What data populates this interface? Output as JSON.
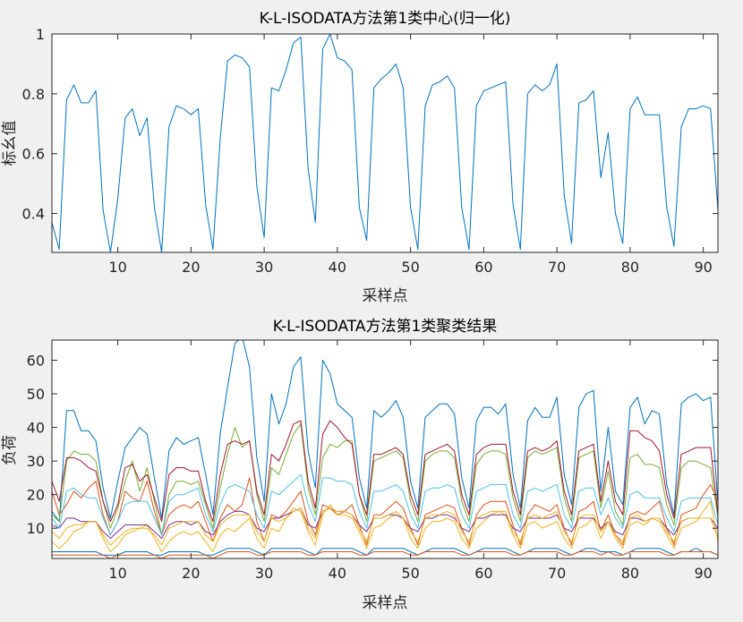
{
  "figure": {
    "background": "#f0f0f0",
    "axes_color": "#262626",
    "plot_background": "#ffffff"
  },
  "chart_data": [
    {
      "type": "line",
      "title": "K-L-ISODATA方法第1类中心(归一化)",
      "xlabel": "采样点",
      "ylabel": "标幺值",
      "xlim": [
        1,
        92
      ],
      "ylim": [
        0.27,
        1.0
      ],
      "xticks": [
        10,
        20,
        30,
        40,
        50,
        60,
        70,
        80,
        90
      ],
      "yticks": [
        0.4,
        0.6,
        0.8,
        1
      ],
      "ytick_labels": [
        "0.4",
        "0.6",
        "0.8",
        "1"
      ],
      "grid": false,
      "series": [
        {
          "color": "#0072BD",
          "x": [
            1,
            2,
            3,
            4,
            5,
            6,
            7,
            8,
            9,
            10,
            11,
            12,
            13,
            14,
            15,
            16,
            17,
            18,
            19,
            20,
            21,
            22,
            23,
            24,
            25,
            26,
            27,
            28,
            29,
            30,
            31,
            32,
            33,
            34,
            35,
            36,
            37,
            38,
            39,
            40,
            41,
            42,
            43,
            44,
            45,
            46,
            47,
            48,
            49,
            50,
            51,
            52,
            53,
            54,
            55,
            56,
            57,
            58,
            59,
            60,
            61,
            62,
            63,
            64,
            65,
            66,
            67,
            68,
            69,
            70,
            71,
            72,
            73,
            74,
            75,
            76,
            77,
            78,
            79,
            80,
            81,
            82,
            83,
            84,
            85,
            86,
            87,
            88,
            89,
            90,
            91,
            92
          ],
          "values": [
            0.37,
            0.28,
            0.78,
            0.83,
            0.77,
            0.77,
            0.81,
            0.41,
            0.27,
            0.45,
            0.72,
            0.75,
            0.66,
            0.72,
            0.42,
            0.27,
            0.69,
            0.76,
            0.75,
            0.73,
            0.75,
            0.43,
            0.28,
            0.65,
            0.91,
            0.93,
            0.92,
            0.89,
            0.49,
            0.32,
            0.82,
            0.81,
            0.88,
            0.97,
            0.99,
            0.55,
            0.37,
            0.95,
            1.0,
            0.92,
            0.91,
            0.88,
            0.42,
            0.31,
            0.82,
            0.85,
            0.87,
            0.9,
            0.82,
            0.42,
            0.28,
            0.76,
            0.83,
            0.84,
            0.86,
            0.82,
            0.42,
            0.28,
            0.76,
            0.81,
            0.82,
            0.83,
            0.84,
            0.43,
            0.28,
            0.8,
            0.83,
            0.81,
            0.83,
            0.9,
            0.46,
            0.3,
            0.77,
            0.78,
            0.81,
            0.52,
            0.67,
            0.4,
            0.3,
            0.75,
            0.79,
            0.73,
            0.73,
            0.73,
            0.42,
            0.29,
            0.69,
            0.75,
            0.75,
            0.76,
            0.75,
            0.41
          ]
        }
      ]
    },
    {
      "type": "line",
      "title": "K-L-ISODATA方法第1类聚类结果",
      "xlabel": "采样点",
      "ylabel": "负荷",
      "xlim": [
        1,
        92
      ],
      "ylim": [
        1,
        66
      ],
      "xticks": [
        10,
        20,
        30,
        40,
        50,
        60,
        70,
        80,
        90
      ],
      "yticks": [
        10,
        20,
        30,
        40,
        50,
        60
      ],
      "grid": false,
      "series": [
        {
          "color": "#0072BD",
          "values": [
            15,
            12,
            45,
            45,
            39,
            39,
            36,
            22,
            13,
            24,
            34,
            37,
            40,
            38,
            25,
            13,
            33,
            37,
            35,
            36,
            37,
            26,
            14,
            38,
            52,
            65,
            67,
            58,
            31,
            18,
            50,
            41,
            47,
            58,
            61,
            33,
            22,
            60,
            56,
            47,
            45,
            43,
            25,
            16,
            45,
            43,
            45,
            48,
            43,
            24,
            16,
            43,
            45,
            47,
            47,
            44,
            25,
            16,
            42,
            46,
            46,
            44,
            47,
            26,
            16,
            42,
            46,
            43,
            43,
            49,
            26,
            17,
            46,
            50,
            51,
            21,
            40,
            21,
            17,
            46,
            49,
            41,
            45,
            44,
            23,
            14,
            47,
            49,
            50,
            48,
            49,
            17
          ]
        },
        {
          "color": "#D95319",
          "values": [
            21,
            14,
            17,
            21,
            19,
            22,
            24,
            14,
            8,
            12,
            21,
            19,
            18,
            24,
            15,
            8,
            14,
            16,
            17,
            16,
            18,
            12,
            6,
            13,
            17,
            15,
            17,
            25,
            12,
            6,
            14,
            13,
            15,
            18,
            21,
            12,
            8,
            17,
            16,
            14,
            15,
            17,
            11,
            5,
            14,
            14,
            16,
            18,
            16,
            10,
            5,
            14,
            15,
            16,
            17,
            16,
            10,
            5,
            14,
            17,
            18,
            18,
            18,
            11,
            5,
            14,
            17,
            16,
            15,
            17,
            10,
            5,
            15,
            16,
            18,
            9,
            14,
            8,
            5,
            14,
            15,
            14,
            16,
            18,
            10,
            5,
            14,
            15,
            16,
            20,
            23,
            18
          ]
        },
        {
          "color": "#EDB120",
          "values": [
            6,
            4,
            6,
            9,
            10,
            12,
            12,
            7,
            3,
            5,
            8,
            9,
            10,
            11,
            7,
            3,
            6,
            8,
            9,
            8,
            9,
            6,
            3,
            8,
            10,
            9,
            11,
            13,
            7,
            4,
            10,
            9,
            13,
            16,
            15,
            9,
            5,
            14,
            17,
            14,
            14,
            13,
            9,
            4,
            10,
            11,
            13,
            14,
            13,
            7,
            4,
            10,
            12,
            12,
            13,
            12,
            7,
            4,
            10,
            12,
            14,
            15,
            14,
            8,
            4,
            11,
            12,
            10,
            11,
            12,
            7,
            4,
            10,
            11,
            13,
            7,
            12,
            7,
            4,
            11,
            12,
            11,
            13,
            12,
            8,
            4,
            10,
            11,
            12,
            15,
            18,
            6
          ]
        },
        {
          "color": "#7E2F8E",
          "values": [
            11,
            10,
            13,
            13,
            12,
            12,
            12,
            9,
            7,
            9,
            11,
            11,
            11,
            11,
            9,
            7,
            11,
            12,
            12,
            11,
            12,
            9,
            8,
            12,
            14,
            15,
            15,
            14,
            10,
            9,
            13,
            13,
            14,
            15,
            16,
            11,
            10,
            15,
            16,
            15,
            15,
            14,
            11,
            9,
            13,
            13,
            14,
            14,
            13,
            10,
            9,
            13,
            13,
            14,
            14,
            13,
            10,
            9,
            13,
            13,
            14,
            14,
            14,
            10,
            9,
            13,
            13,
            13,
            13,
            14,
            10,
            9,
            13,
            13,
            13,
            10,
            12,
            9,
            8,
            13,
            13,
            12,
            13,
            13,
            10,
            8,
            12,
            13,
            13,
            13,
            13,
            10
          ]
        },
        {
          "color": "#77AC30",
          "values": [
            14,
            12,
            30,
            33,
            32,
            32,
            30,
            18,
            10,
            16,
            24,
            30,
            21,
            28,
            18,
            8,
            20,
            24,
            24,
            23,
            24,
            17,
            10,
            22,
            32,
            40,
            34,
            36,
            20,
            12,
            28,
            26,
            32,
            38,
            41,
            22,
            14,
            31,
            35,
            34,
            36,
            36,
            20,
            12,
            30,
            31,
            32,
            33,
            31,
            18,
            12,
            30,
            32,
            33,
            33,
            31,
            18,
            12,
            29,
            32,
            33,
            33,
            32,
            19,
            12,
            31,
            33,
            32,
            33,
            34,
            19,
            12,
            31,
            32,
            33,
            16,
            27,
            15,
            11,
            31,
            32,
            29,
            29,
            28,
            17,
            11,
            28,
            30,
            30,
            29,
            28,
            13
          ]
        },
        {
          "color": "#4DBEEE",
          "values": [
            13,
            10,
            21,
            22,
            20,
            19,
            19,
            13,
            8,
            12,
            17,
            18,
            18,
            18,
            13,
            8,
            18,
            20,
            20,
            21,
            22,
            14,
            9,
            17,
            22,
            23,
            22,
            21,
            14,
            10,
            21,
            20,
            22,
            24,
            26,
            17,
            12,
            25,
            25,
            24,
            24,
            23,
            15,
            10,
            21,
            21,
            22,
            23,
            21,
            14,
            10,
            21,
            22,
            22,
            23,
            22,
            14,
            10,
            21,
            22,
            23,
            23,
            23,
            14,
            10,
            21,
            22,
            21,
            22,
            23,
            14,
            10,
            21,
            22,
            22,
            14,
            19,
            13,
            10,
            20,
            21,
            19,
            19,
            19,
            13,
            9,
            18,
            19,
            19,
            19,
            19,
            11
          ]
        },
        {
          "color": "#A2142F",
          "values": [
            24,
            18,
            31,
            31,
            30,
            28,
            27,
            18,
            12,
            17,
            28,
            29,
            24,
            26,
            19,
            12,
            26,
            28,
            28,
            27,
            27,
            18,
            12,
            26,
            35,
            36,
            35,
            36,
            21,
            14,
            32,
            30,
            35,
            41,
            42,
            24,
            16,
            38,
            42,
            40,
            37,
            35,
            20,
            14,
            32,
            32,
            33,
            34,
            32,
            20,
            14,
            32,
            33,
            34,
            35,
            33,
            20,
            14,
            32,
            34,
            35,
            35,
            35,
            21,
            14,
            33,
            34,
            33,
            34,
            36,
            21,
            14,
            33,
            34,
            35,
            18,
            30,
            18,
            14,
            39,
            39,
            37,
            36,
            33,
            20,
            13,
            32,
            33,
            34,
            34,
            34,
            14
          ]
        },
        {
          "color": "#0072BD",
          "values": [
            3,
            3,
            3,
            3,
            3,
            3,
            3,
            2,
            2,
            2,
            3,
            3,
            3,
            3,
            2,
            2,
            3,
            3,
            3,
            3,
            3,
            2,
            2,
            3,
            4,
            4,
            4,
            4,
            3,
            2,
            4,
            4,
            4,
            4,
            4,
            3,
            2,
            4,
            4,
            4,
            4,
            4,
            3,
            2,
            4,
            4,
            4,
            4,
            4,
            3,
            2,
            3,
            4,
            4,
            4,
            4,
            3,
            2,
            3,
            4,
            4,
            4,
            4,
            3,
            2,
            3,
            4,
            4,
            4,
            4,
            3,
            2,
            3,
            4,
            4,
            3,
            3,
            3,
            2,
            3,
            4,
            4,
            4,
            4,
            3,
            2,
            3,
            3,
            4,
            3,
            3,
            2
          ]
        },
        {
          "color": "#D95319",
          "values": [
            2,
            2,
            2,
            2,
            2,
            2,
            2,
            2,
            1,
            2,
            2,
            2,
            2,
            2,
            2,
            1,
            2,
            2,
            2,
            2,
            2,
            2,
            1,
            2,
            3,
            3,
            3,
            3,
            2,
            2,
            3,
            3,
            3,
            3,
            3,
            2,
            2,
            3,
            3,
            3,
            3,
            3,
            2,
            2,
            3,
            3,
            3,
            3,
            3,
            2,
            2,
            3,
            3,
            3,
            3,
            3,
            2,
            2,
            3,
            3,
            3,
            3,
            3,
            2,
            2,
            3,
            3,
            3,
            3,
            3,
            2,
            2,
            3,
            3,
            3,
            2,
            3,
            2,
            2,
            3,
            3,
            3,
            3,
            3,
            2,
            2,
            3,
            3,
            3,
            3,
            3,
            2
          ]
        },
        {
          "color": "#EDB120",
          "values": [
            9,
            7,
            10,
            11,
            11,
            12,
            12,
            8,
            5,
            7,
            9,
            10,
            10,
            10,
            8,
            5,
            10,
            11,
            12,
            12,
            12,
            8,
            6,
            11,
            13,
            14,
            14,
            14,
            9,
            6,
            13,
            12,
            13,
            15,
            16,
            10,
            7,
            15,
            16,
            15,
            15,
            14,
            10,
            6,
            13,
            13,
            14,
            15,
            13,
            9,
            6,
            13,
            14,
            14,
            15,
            14,
            9,
            6,
            13,
            14,
            15,
            15,
            15,
            9,
            6,
            13,
            14,
            13,
            14,
            15,
            9,
            6,
            13,
            14,
            14,
            9,
            12,
            8,
            6,
            13,
            14,
            12,
            13,
            13,
            9,
            6,
            12,
            13,
            13,
            13,
            13,
            7
          ]
        }
      ]
    }
  ]
}
